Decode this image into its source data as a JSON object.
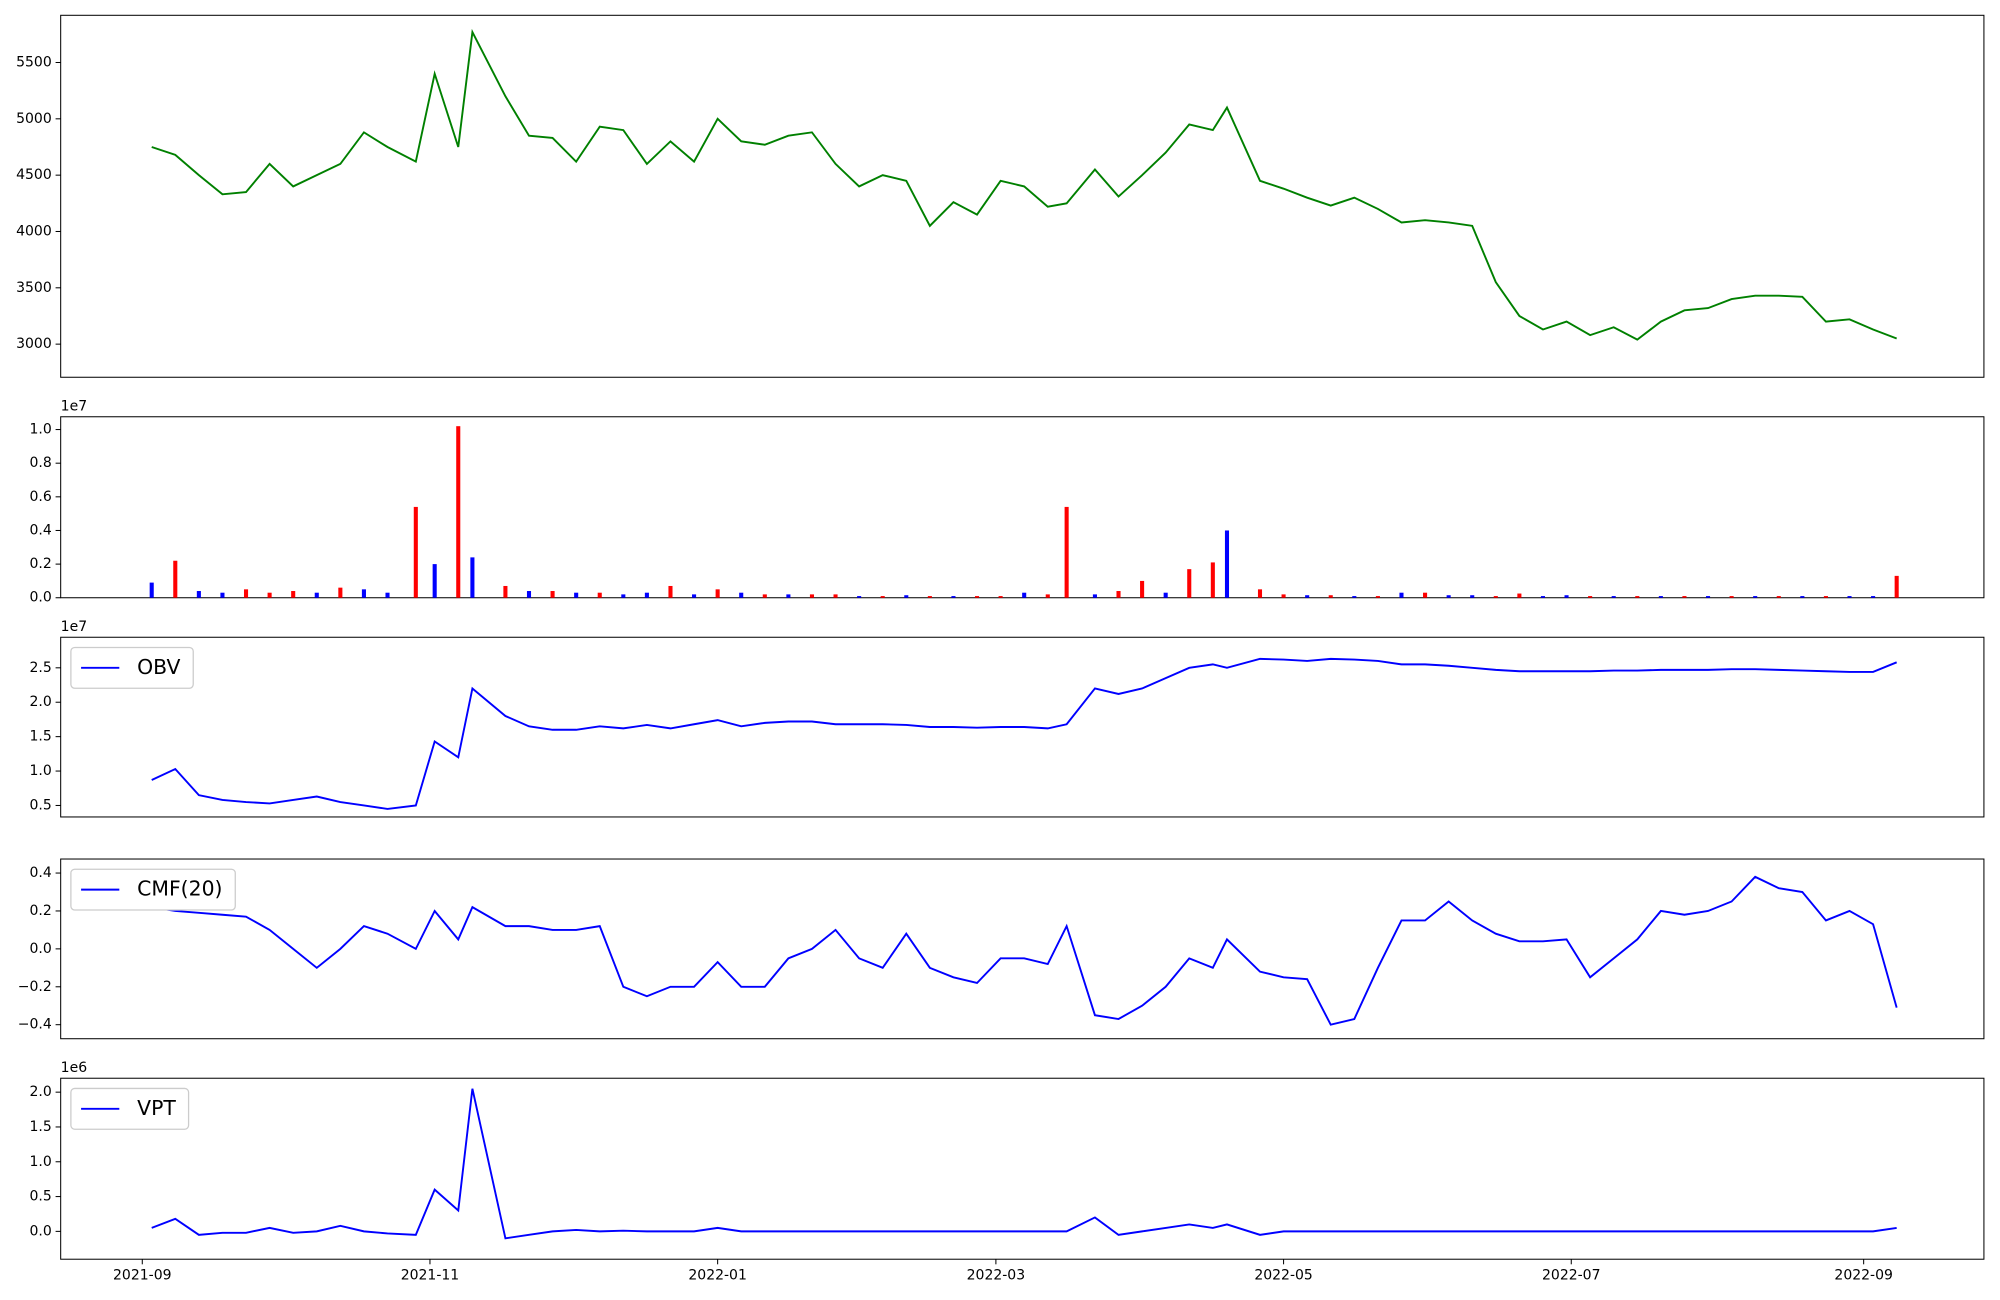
{
  "chart_data": [
    {
      "type": "line",
      "color": "#008000",
      "x": [
        2,
        7,
        12,
        17,
        22,
        27,
        32,
        37,
        42,
        47,
        52,
        58,
        62,
        67,
        70,
        77,
        82,
        87,
        92,
        97,
        102,
        107,
        112,
        117,
        122,
        127,
        132,
        137,
        142,
        147,
        152,
        157,
        162,
        167,
        172,
        177,
        182,
        187,
        192,
        196,
        202,
        207,
        212,
        217,
        222,
        227,
        230,
        237,
        242,
        247,
        252,
        257,
        262,
        267,
        272,
        277,
        282,
        287,
        292,
        297,
        302,
        307,
        312,
        317,
        322,
        327,
        332,
        337,
        342,
        347,
        352,
        357,
        362,
        367,
        372
      ],
      "values": [
        4750,
        4680,
        4500,
        4330,
        4350,
        4600,
        4400,
        4500,
        4600,
        4880,
        4750,
        4620,
        5400,
        4750,
        5770,
        5200,
        4850,
        4830,
        4620,
        4930,
        4900,
        4600,
        4800,
        4620,
        5000,
        4800,
        4770,
        4850,
        4880,
        4600,
        4400,
        4500,
        4450,
        4050,
        4260,
        4150,
        4450,
        4400,
        4220,
        4250,
        4550,
        4310,
        4500,
        4700,
        4950,
        4900,
        5100,
        4450,
        4380,
        4300,
        4230,
        4300,
        4200,
        4080,
        4100,
        4080,
        4050,
        3550,
        3250,
        3130,
        3200,
        3080,
        3150,
        3040,
        3200,
        3300,
        3320,
        3400,
        3430,
        3430,
        3420,
        3200,
        3220,
        3130,
        3050
      ],
      "xlim": [
        -17.3,
        390.5
      ],
      "ylim": [
        2706,
        5919
      ],
      "yticks": [
        3000,
        3500,
        4000,
        4500,
        5000,
        5500
      ]
    },
    {
      "type": "bar",
      "offset_text": "1e7",
      "x": [
        2,
        7,
        12,
        17,
        22,
        27,
        32,
        37,
        42,
        47,
        52,
        58,
        62,
        67,
        70,
        77,
        82,
        87,
        92,
        97,
        102,
        107,
        112,
        117,
        122,
        127,
        132,
        137,
        142,
        147,
        152,
        157,
        162,
        167,
        172,
        177,
        182,
        187,
        192,
        196,
        202,
        207,
        212,
        217,
        222,
        227,
        230,
        237,
        242,
        247,
        252,
        257,
        262,
        267,
        272,
        277,
        282,
        287,
        292,
        297,
        302,
        307,
        312,
        317,
        322,
        327,
        332,
        337,
        342,
        347,
        352,
        357,
        362,
        367,
        372
      ],
      "values": [
        0.09,
        0.22,
        0.04,
        0.03,
        0.05,
        0.03,
        0.04,
        0.03,
        0.06,
        0.05,
        0.03,
        0.54,
        0.2,
        1.02,
        0.24,
        0.07,
        0.04,
        0.04,
        0.03,
        0.03,
        0.02,
        0.03,
        0.07,
        0.02,
        0.05,
        0.03,
        0.02,
        0.02,
        0.02,
        0.02,
        0.01,
        0.01,
        0.015,
        0.01,
        0.01,
        0.01,
        0.01,
        0.03,
        0.02,
        0.54,
        0.02,
        0.04,
        0.1,
        0.03,
        0.17,
        0.21,
        0.4,
        0.05,
        0.02,
        0.015,
        0.015,
        0.01,
        0.01,
        0.03,
        0.03,
        0.015,
        0.015,
        0.01,
        0.025,
        0.01,
        0.015,
        0.01,
        0.01,
        0.01,
        0.01,
        0.01,
        0.01,
        0.01,
        0.01,
        0.01,
        0.01,
        0.01,
        0.01,
        0.01,
        0.13
      ],
      "colors": [
        "#0000ff",
        "#ff0000",
        "#0000ff",
        "#0000ff",
        "#ff0000",
        "#ff0000",
        "#ff0000",
        "#0000ff",
        "#ff0000",
        "#0000ff",
        "#0000ff",
        "#ff0000",
        "#0000ff",
        "#ff0000",
        "#0000ff",
        "#ff0000",
        "#0000ff",
        "#ff0000",
        "#0000ff",
        "#ff0000",
        "#0000ff",
        "#0000ff",
        "#ff0000",
        "#0000ff",
        "#ff0000",
        "#0000ff",
        "#ff0000",
        "#0000ff",
        "#ff0000",
        "#ff0000",
        "#0000ff",
        "#ff0000",
        "#0000ff",
        "#ff0000",
        "#0000ff",
        "#ff0000",
        "#ff0000",
        "#0000ff",
        "#ff0000",
        "#ff0000",
        "#0000ff",
        "#ff0000",
        "#ff0000",
        "#0000ff",
        "#ff0000",
        "#ff0000",
        "#0000ff",
        "#ff0000",
        "#ff0000",
        "#0000ff",
        "#ff0000",
        "#0000ff",
        "#ff0000",
        "#0000ff",
        "#ff0000",
        "#0000ff",
        "#0000ff",
        "#ff0000",
        "#ff0000",
        "#0000ff",
        "#0000ff",
        "#ff0000",
        "#0000ff",
        "#ff0000",
        "#0000ff",
        "#ff0000",
        "#0000ff",
        "#ff0000",
        "#0000ff",
        "#ff0000",
        "#0000ff",
        "#ff0000",
        "#0000ff",
        "#0000ff",
        "#ff0000"
      ],
      "xlim": [
        -17.3,
        390.5
      ],
      "ylim": [
        0,
        1.076
      ],
      "yticks": [
        {
          "value": 0,
          "label": "0.0"
        },
        0.2,
        0.4,
        0.6,
        0.8,
        {
          "value": 1,
          "label": "1.0"
        }
      ]
    },
    {
      "type": "line",
      "offset_text": "1e7",
      "legend": "upper left",
      "x": [
        2,
        7,
        12,
        17,
        22,
        27,
        32,
        37,
        42,
        47,
        52,
        58,
        62,
        67,
        70,
        77,
        82,
        87,
        92,
        97,
        102,
        107,
        112,
        117,
        122,
        127,
        132,
        137,
        142,
        147,
        152,
        157,
        162,
        167,
        172,
        177,
        182,
        187,
        192,
        196,
        202,
        207,
        212,
        217,
        222,
        227,
        230,
        237,
        242,
        247,
        252,
        257,
        262,
        267,
        272,
        277,
        282,
        287,
        292,
        297,
        302,
        307,
        312,
        317,
        322,
        327,
        332,
        337,
        342,
        347,
        352,
        357,
        362,
        367,
        372
      ],
      "series": [
        {
          "name": "OBV",
          "color": "#0000ff",
          "values": [
            0.87,
            1.03,
            0.65,
            0.58,
            0.55,
            0.53,
            0.58,
            0.63,
            0.55,
            0.5,
            0.45,
            0.5,
            1.43,
            1.2,
            2.2,
            1.8,
            1.65,
            1.6,
            1.6,
            1.65,
            1.62,
            1.67,
            1.62,
            1.68,
            1.74,
            1.65,
            1.7,
            1.72,
            1.72,
            1.68,
            1.68,
            1.68,
            1.67,
            1.64,
            1.64,
            1.63,
            1.64,
            1.64,
            1.62,
            1.68,
            2.2,
            2.12,
            2.2,
            2.35,
            2.5,
            2.55,
            2.5,
            2.63,
            2.62,
            2.6,
            2.63,
            2.62,
            2.6,
            2.55,
            2.55,
            2.53,
            2.5,
            2.47,
            2.45,
            2.45,
            2.45,
            2.45,
            2.46,
            2.46,
            2.47,
            2.47,
            2.47,
            2.48,
            2.48,
            2.47,
            2.46,
            2.45,
            2.44,
            2.44,
            2.58
          ]
        }
      ],
      "xlim": [
        -17.3,
        390.5
      ],
      "ylim": [
        0.333,
        2.944
      ],
      "yticks": [
        0.5,
        {
          "value": 1,
          "label": "1.0"
        },
        1.5,
        {
          "value": 2,
          "label": "2.0"
        },
        2.5
      ]
    },
    {
      "type": "line",
      "legend": "upper left",
      "x": [
        2,
        7,
        12,
        17,
        22,
        27,
        32,
        37,
        42,
        47,
        52,
        58,
        62,
        67,
        70,
        77,
        82,
        87,
        92,
        97,
        102,
        107,
        112,
        117,
        122,
        127,
        132,
        137,
        142,
        147,
        152,
        157,
        162,
        167,
        172,
        177,
        182,
        187,
        192,
        196,
        202,
        207,
        212,
        217,
        222,
        227,
        230,
        237,
        242,
        247,
        252,
        257,
        262,
        267,
        272,
        277,
        282,
        287,
        292,
        297,
        302,
        307,
        312,
        317,
        322,
        327,
        332,
        337,
        342,
        347,
        352,
        357,
        362,
        367,
        372
      ],
      "series": [
        {
          "name": "CMF(20)",
          "color": "#0000ff",
          "values": [
            0.22,
            0.2,
            0.19,
            0.18,
            0.17,
            0.1,
            0.0,
            -0.1,
            0.0,
            0.12,
            0.08,
            0.0,
            0.2,
            0.05,
            0.22,
            0.12,
            0.12,
            0.1,
            0.1,
            0.12,
            -0.2,
            -0.25,
            -0.2,
            -0.2,
            -0.07,
            -0.2,
            -0.2,
            -0.05,
            0.0,
            0.1,
            -0.05,
            -0.1,
            0.08,
            -0.1,
            -0.15,
            -0.18,
            -0.05,
            -0.05,
            -0.08,
            0.12,
            -0.35,
            -0.37,
            -0.3,
            -0.2,
            -0.05,
            -0.1,
            0.05,
            -0.12,
            -0.15,
            -0.16,
            -0.4,
            -0.37,
            -0.1,
            0.15,
            0.15,
            0.25,
            0.15,
            0.08,
            0.04,
            0.04,
            0.05,
            -0.15,
            -0.05,
            0.05,
            0.2,
            0.18,
            0.2,
            0.25,
            0.38,
            0.32,
            0.3,
            0.15,
            0.2,
            0.13,
            -0.31
          ]
        }
      ],
      "xlim": [
        -17.3,
        390.5
      ],
      "ylim": [
        -0.474,
        0.474
      ],
      "yticks": [
        {
          "value": -0.4,
          "label": "−0.4"
        },
        {
          "value": -0.2,
          "label": "−0.2"
        },
        {
          "value": 0,
          "label": "0.0"
        },
        0.2,
        0.4
      ]
    },
    {
      "type": "line",
      "offset_text": "1e6",
      "legend": "upper left",
      "x": [
        2,
        7,
        12,
        17,
        22,
        27,
        32,
        37,
        42,
        47,
        52,
        58,
        62,
        67,
        70,
        77,
        82,
        87,
        92,
        97,
        102,
        107,
        112,
        117,
        122,
        127,
        132,
        137,
        142,
        147,
        152,
        157,
        162,
        167,
        172,
        177,
        182,
        187,
        192,
        196,
        202,
        207,
        212,
        217,
        222,
        227,
        230,
        237,
        242,
        247,
        252,
        257,
        262,
        267,
        272,
        277,
        282,
        287,
        292,
        297,
        302,
        307,
        312,
        317,
        322,
        327,
        332,
        337,
        342,
        347,
        352,
        357,
        362,
        367,
        372
      ],
      "series": [
        {
          "name": "VPT",
          "color": "#0000ff",
          "values": [
            0.05,
            0.18,
            -0.05,
            -0.02,
            -0.02,
            0.05,
            -0.02,
            0.0,
            0.08,
            0.0,
            -0.03,
            -0.05,
            0.6,
            0.3,
            2.05,
            -0.1,
            -0.05,
            0.0,
            0.02,
            0.0,
            0.01,
            0.0,
            0.0,
            0.0,
            0.05,
            0.0,
            0.0,
            0.0,
            0.0,
            0.0,
            0.0,
            0.0,
            0.0,
            0.0,
            0.0,
            0.0,
            0.0,
            0.0,
            0.0,
            0.0,
            0.2,
            -0.05,
            0.0,
            0.05,
            0.1,
            0.05,
            0.1,
            -0.05,
            0.0,
            0.0,
            0.0,
            0.0,
            0.0,
            0.0,
            0.0,
            0.0,
            0.0,
            0.0,
            0.0,
            0.0,
            0.0,
            0.0,
            0.0,
            0.0,
            0.0,
            0.0,
            0.0,
            0.0,
            0.0,
            0.0,
            0.0,
            0.0,
            0.0,
            0.0,
            0.05
          ]
        }
      ],
      "xlim": [
        -17.3,
        390.5
      ],
      "ylim": [
        -0.4,
        2.2
      ],
      "yticks": [
        {
          "value": 0,
          "label": "0.0"
        },
        0.5,
        {
          "value": 1,
          "label": "1.0"
        },
        1.5,
        {
          "value": 2,
          "label": "2.0"
        }
      ],
      "xticks": [
        {
          "value": 0,
          "label": "2021-09"
        },
        {
          "value": 61,
          "label": "2021-11"
        },
        {
          "value": 122,
          "label": "2022-01"
        },
        {
          "value": 181,
          "label": "2022-03"
        },
        {
          "value": 242,
          "label": "2022-05"
        },
        {
          "value": 303,
          "label": "2022-07"
        },
        {
          "value": 365,
          "label": "2022-09"
        }
      ]
    }
  ]
}
